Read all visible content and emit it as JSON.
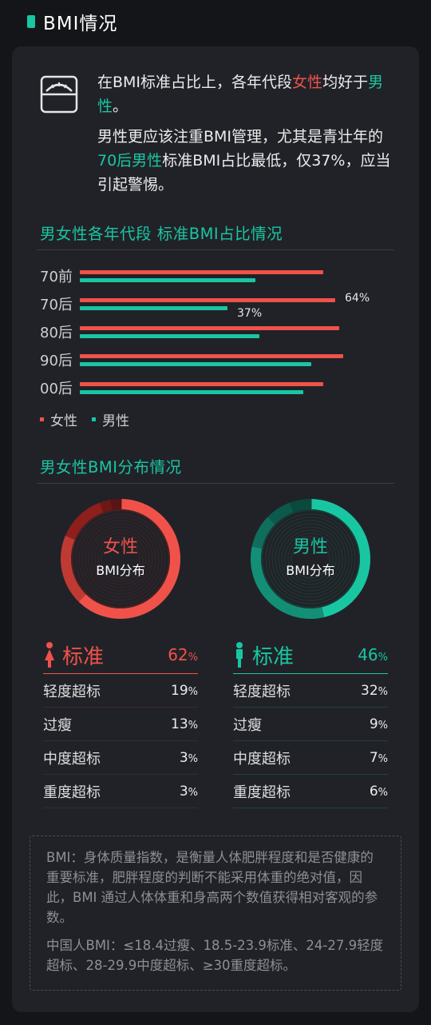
{
  "header": {
    "title": "BMI情况"
  },
  "intro": {
    "icon": "scale-icon",
    "p1_a": "在BMI标准占比上，各年代段",
    "p1_female": "女性",
    "p1_b": "均好于",
    "p1_male": "男性",
    "p1_c": "。",
    "p2_a": "男性更应该注重BMI管理，尤其是青壮年的",
    "p2_highlight": "70后男性",
    "p2_b": "标准BMI占比最低，仅37%，应当引起警惕。"
  },
  "section1": {
    "title": "男女性各年代段  标准BMI占比情况"
  },
  "section2": {
    "title": "男女性BMI分布情况"
  },
  "colors": {
    "female": "#f0524a",
    "male": "#19c6a2"
  },
  "chart_data": [
    {
      "type": "bar",
      "title": "男女性各年代段  标准BMI占比情况",
      "categories": [
        "70前",
        "70后",
        "80后",
        "90后",
        "00后"
      ],
      "series": [
        {
          "name": "女性",
          "values": [
            61,
            64,
            65,
            66,
            61
          ],
          "value_labels": [
            "",
            "64%",
            "",
            "",
            ""
          ]
        },
        {
          "name": "男性",
          "values": [
            44,
            37,
            45,
            58,
            56
          ],
          "value_labels": [
            "",
            "37%",
            "",
            "",
            ""
          ]
        }
      ],
      "orientation": "horizontal",
      "xlim": [
        0,
        75
      ],
      "legend": "bottom-left"
    },
    {
      "type": "pie",
      "title": "女性 BMI分布",
      "labels": [
        "标准",
        "轻度超标",
        "过瘦",
        "中度超标",
        "重度超标"
      ],
      "values": [
        62,
        19,
        13,
        3,
        3
      ]
    },
    {
      "type": "pie",
      "title": "男性 BMI分布",
      "labels": [
        "标准",
        "轻度超标",
        "过瘦",
        "中度超标",
        "重度超标"
      ],
      "values": [
        46,
        32,
        9,
        7,
        6
      ]
    }
  ],
  "donut_female": {
    "line1": "女性",
    "line2": "BMI分布"
  },
  "donut_male": {
    "line1": "男性",
    "line2": "BMI分布"
  },
  "table_female": {
    "head_label": "标准",
    "head_value": "62",
    "unit": "%",
    "rows": [
      {
        "label": "轻度超标",
        "value": "19"
      },
      {
        "label": "过瘦",
        "value": "13"
      },
      {
        "label": "中度超标",
        "value": "3"
      },
      {
        "label": "重度超标",
        "value": "3"
      }
    ]
  },
  "table_male": {
    "head_label": "标准",
    "head_value": "46",
    "unit": "%",
    "rows": [
      {
        "label": "轻度超标",
        "value": "32"
      },
      {
        "label": "过瘦",
        "value": "9"
      },
      {
        "label": "中度超标",
        "value": "7"
      },
      {
        "label": "重度超标",
        "value": "6"
      }
    ]
  },
  "note": {
    "p1": "BMI：身体质量指数，是衡量人体肥胖程度和是否健康的重要标准，肥胖程度的判断不能采用体重的绝对值，因此，BMI 通过人体体重和身高两个数值获得相对客观的参数。",
    "p2": "中国人BMI：≤18.4过瘦、18.5-23.9标准、24-27.9轻度超标、28-29.9中度超标、≥30重度超标。"
  }
}
